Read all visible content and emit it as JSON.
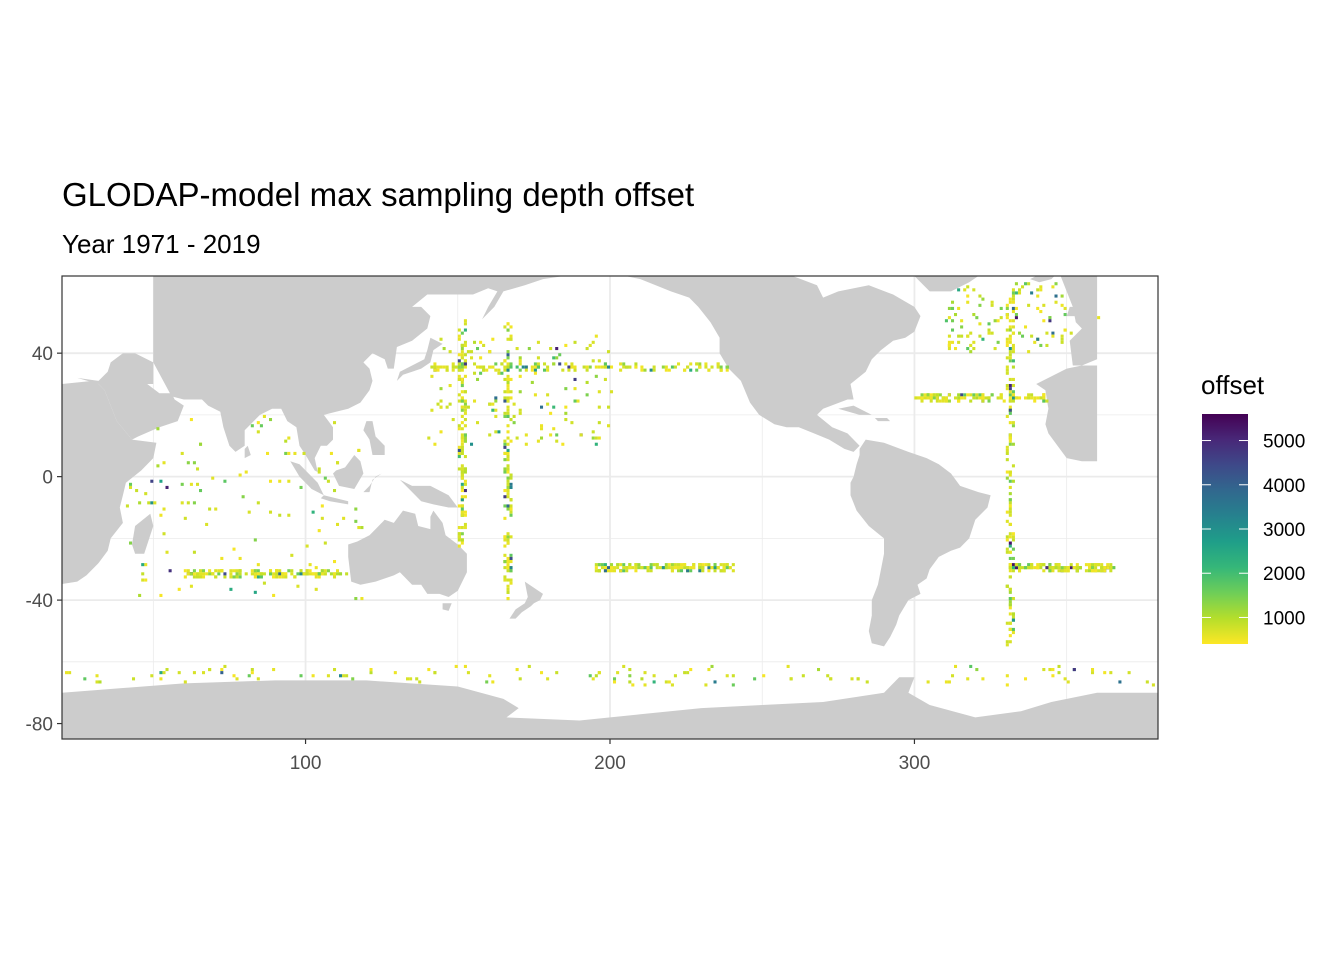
{
  "title": "GLODAP-model max sampling depth offset",
  "subtitle": "Year 1971 - 2019",
  "colors": {
    "land": "#cccccc",
    "ocean": "#ffffff",
    "grid": "#ebebeb",
    "panel_border": "#333333",
    "viridis": [
      "#fde725",
      "#b5de2b",
      "#6ece58",
      "#35b779",
      "#1f9e89",
      "#26828e",
      "#31688e",
      "#3e4989",
      "#482878",
      "#440154"
    ]
  },
  "chart_data": {
    "type": "heatmap",
    "x_axis": {
      "ticks": [
        100,
        200,
        300
      ],
      "range": [
        20,
        380
      ]
    },
    "y_axis": {
      "ticks": [
        40,
        0,
        -40,
        -80
      ],
      "range": [
        -85,
        65
      ]
    },
    "grid": true,
    "legend": {
      "title": "offset",
      "position": "right",
      "ticks": [
        5000,
        4000,
        3000,
        2000,
        1000
      ],
      "range": [
        400,
        5600
      ]
    },
    "land_polygons": {
      "north_america": [
        [
          190,
          65
        ],
        [
          200,
          66
        ],
        [
          210,
          64
        ],
        [
          215,
          62
        ],
        [
          220,
          60
        ],
        [
          226,
          58
        ],
        [
          229,
          55
        ],
        [
          233,
          50
        ],
        [
          236,
          45
        ],
        [
          236,
          40
        ],
        [
          239,
          35
        ],
        [
          243,
          31
        ],
        [
          246,
          24
        ],
        [
          249,
          20
        ],
        [
          254,
          17
        ],
        [
          258,
          16
        ],
        [
          262,
          16
        ],
        [
          267,
          14
        ],
        [
          272,
          12
        ],
        [
          277,
          9
        ],
        [
          280,
          8
        ],
        [
          282,
          10
        ],
        [
          278,
          14
        ],
        [
          273,
          16
        ],
        [
          268,
          20
        ],
        [
          270,
          22
        ],
        [
          278,
          25
        ],
        [
          280,
          25
        ],
        [
          279,
          30
        ],
        [
          284,
          34
        ],
        [
          286,
          38
        ],
        [
          289,
          41
        ],
        [
          293,
          44
        ],
        [
          297,
          45
        ],
        [
          300,
          47
        ],
        [
          302,
          52
        ],
        [
          300,
          55
        ],
        [
          293,
          59
        ],
        [
          285,
          62
        ],
        [
          275,
          60
        ],
        [
          270,
          58
        ],
        [
          268,
          62
        ],
        [
          260,
          65
        ]
      ],
      "greenland": [
        [
          300,
          65
        ],
        [
          305,
          60
        ],
        [
          312,
          60
        ],
        [
          318,
          63
        ],
        [
          321,
          65
        ]
      ],
      "south_america": [
        [
          282,
          9
        ],
        [
          284,
          12
        ],
        [
          290,
          11
        ],
        [
          298,
          8
        ],
        [
          304,
          6
        ],
        [
          308,
          4
        ],
        [
          312,
          1
        ],
        [
          315,
          -3
        ],
        [
          321,
          -5
        ],
        [
          325,
          -6
        ],
        [
          324,
          -10
        ],
        [
          320,
          -14
        ],
        [
          318,
          -20
        ],
        [
          315,
          -23
        ],
        [
          312,
          -24
        ],
        [
          308,
          -26
        ],
        [
          305,
          -30
        ],
        [
          304,
          -33
        ],
        [
          301,
          -35
        ],
        [
          302,
          -38
        ],
        [
          298,
          -40
        ],
        [
          295,
          -45
        ],
        [
          294,
          -48
        ],
        [
          292,
          -52
        ],
        [
          290,
          -55
        ],
        [
          286,
          -54
        ],
        [
          285,
          -50
        ],
        [
          286,
          -45
        ],
        [
          286,
          -40
        ],
        [
          288,
          -35
        ],
        [
          289,
          -30
        ],
        [
          290,
          -25
        ],
        [
          290,
          -20
        ],
        [
          285,
          -16
        ],
        [
          281,
          -11
        ],
        [
          279,
          -6
        ],
        [
          279,
          -2
        ],
        [
          280,
          0
        ],
        [
          281,
          4
        ],
        [
          282,
          7
        ]
      ],
      "europe": [
        [
          348,
          65
        ],
        [
          350,
          60
        ],
        [
          352,
          55
        ],
        [
          353,
          50
        ],
        [
          355,
          48
        ],
        [
          351,
          44
        ],
        [
          352,
          36
        ],
        [
          355,
          36
        ],
        [
          360,
          38
        ],
        [
          360,
          65
        ]
      ],
      "europe_wrap": [
        [
          20,
          65
        ],
        [
          20,
          30
        ],
        [
          25,
          32
        ],
        [
          32,
          31
        ],
        [
          35,
          34
        ],
        [
          36,
          37
        ],
        [
          40,
          40
        ],
        [
          44,
          40
        ],
        [
          50,
          37
        ],
        [
          50,
          30
        ],
        [
          48,
          30
        ],
        [
          52,
          27
        ],
        [
          56,
          27
        ],
        [
          57,
          25
        ],
        [
          60,
          23
        ],
        [
          58,
          18
        ],
        [
          52,
          16
        ],
        [
          45,
          13
        ],
        [
          43,
          12
        ],
        [
          38,
          18
        ],
        [
          34,
          28
        ],
        [
          32,
          30
        ],
        [
          25,
          32
        ],
        [
          20,
          30
        ],
        [
          20,
          65
        ]
      ],
      "africa": [
        [
          20,
          30
        ],
        [
          30,
          31
        ],
        [
          32,
          30
        ],
        [
          34,
          28
        ],
        [
          38,
          18
        ],
        [
          43,
          12
        ],
        [
          51,
          11
        ],
        [
          50,
          6
        ],
        [
          46,
          2
        ],
        [
          41,
          -2
        ],
        [
          40,
          -6
        ],
        [
          39,
          -10
        ],
        [
          40,
          -15
        ],
        [
          36,
          -20
        ],
        [
          35,
          -24
        ],
        [
          32,
          -28
        ],
        [
          28,
          -32
        ],
        [
          25,
          -34
        ],
        [
          20,
          -34.8
        ]
      ],
      "africa_wrap": [
        [
          340,
          30
        ],
        [
          343,
          28
        ],
        [
          344,
          22
        ],
        [
          343,
          17
        ],
        [
          344,
          14
        ],
        [
          347,
          10
        ],
        [
          350,
          6
        ],
        [
          355,
          5
        ],
        [
          360,
          5
        ],
        [
          360,
          36
        ],
        [
          355,
          36
        ],
        [
          350,
          35
        ],
        [
          344,
          32
        ]
      ],
      "madagascar": [
        [
          44,
          -25
        ],
        [
          47,
          -25
        ],
        [
          50,
          -16
        ],
        [
          49,
          -12
        ],
        [
          44,
          -16
        ],
        [
          43,
          -22
        ]
      ],
      "asia": [
        [
          50,
          65
        ],
        [
          50,
          37
        ],
        [
          56,
          26
        ],
        [
          60,
          25
        ],
        [
          66,
          25
        ],
        [
          68,
          23
        ],
        [
          72,
          21
        ],
        [
          73,
          16
        ],
        [
          75,
          10
        ],
        [
          77,
          8
        ],
        [
          80,
          10
        ],
        [
          80,
          15
        ],
        [
          85,
          20
        ],
        [
          89,
          22
        ],
        [
          92,
          22
        ],
        [
          94,
          18
        ],
        [
          97,
          16
        ],
        [
          98,
          10
        ],
        [
          100,
          7
        ],
        [
          103,
          2
        ],
        [
          104,
          1.5
        ],
        [
          103,
          6
        ],
        [
          105,
          10
        ],
        [
          107,
          10
        ],
        [
          109,
          12
        ],
        [
          109,
          16
        ],
        [
          106,
          20
        ],
        [
          110,
          21
        ],
        [
          114,
          22
        ],
        [
          118,
          24
        ],
        [
          121,
          28
        ],
        [
          122,
          31
        ],
        [
          121,
          35
        ],
        [
          119,
          37
        ],
        [
          122,
          40
        ],
        [
          126,
          38
        ],
        [
          127,
          35
        ],
        [
          129,
          35
        ],
        [
          130,
          42
        ],
        [
          135,
          44
        ],
        [
          140,
          48
        ],
        [
          141,
          52
        ],
        [
          138,
          55
        ],
        [
          135,
          55
        ],
        [
          140,
          59
        ],
        [
          148,
          59
        ],
        [
          155,
          59
        ],
        [
          160,
          61
        ],
        [
          163,
          60
        ],
        [
          160,
          55
        ],
        [
          158,
          51
        ],
        [
          162,
          55
        ],
        [
          165,
          60
        ],
        [
          172,
          62
        ],
        [
          178,
          64
        ],
        [
          185,
          65
        ]
      ],
      "japan": [
        [
          130,
          31
        ],
        [
          132,
          33
        ],
        [
          135,
          34
        ],
        [
          138,
          35
        ],
        [
          141,
          37
        ],
        [
          142,
          41
        ],
        [
          145,
          43
        ],
        [
          141,
          45
        ],
        [
          140,
          41
        ],
        [
          139,
          38
        ],
        [
          135,
          36
        ],
        [
          131,
          34
        ]
      ],
      "sri_lanka": [
        [
          80,
          6
        ],
        [
          82,
          7
        ],
        [
          81,
          10
        ],
        [
          80,
          9
        ]
      ],
      "borneo": [
        [
          109,
          1
        ],
        [
          111,
          -3
        ],
        [
          116,
          -4
        ],
        [
          119,
          1
        ],
        [
          118,
          5
        ],
        [
          116,
          7
        ],
        [
          113,
          3
        ],
        [
          110,
          2
        ]
      ],
      "sumatra": [
        [
          95,
          5
        ],
        [
          98,
          4
        ],
        [
          104,
          -2
        ],
        [
          106,
          -6
        ],
        [
          102,
          -4
        ],
        [
          98,
          0
        ]
      ],
      "java": [
        [
          106,
          -6
        ],
        [
          110,
          -7
        ],
        [
          114,
          -8
        ],
        [
          114,
          -9
        ],
        [
          108,
          -8
        ],
        [
          105,
          -7
        ]
      ],
      "sulawesi": [
        [
          119,
          -5
        ],
        [
          121,
          -3
        ],
        [
          123,
          0
        ],
        [
          125,
          1
        ],
        [
          122,
          -1
        ],
        [
          121,
          -5
        ]
      ],
      "philippines": [
        [
          120,
          18
        ],
        [
          122,
          18
        ],
        [
          123,
          13
        ],
        [
          126,
          10
        ],
        [
          126,
          7
        ],
        [
          122,
          7
        ],
        [
          121,
          12
        ],
        [
          119,
          15
        ]
      ],
      "new_guinea": [
        [
          131,
          -1
        ],
        [
          135,
          -3
        ],
        [
          141,
          -3
        ],
        [
          147,
          -6
        ],
        [
          150,
          -10
        ],
        [
          147,
          -10
        ],
        [
          142,
          -9
        ],
        [
          138,
          -8
        ],
        [
          134,
          -4
        ]
      ],
      "australia": [
        [
          114,
          -22
        ],
        [
          114,
          -26
        ],
        [
          115,
          -34
        ],
        [
          118,
          -35
        ],
        [
          123,
          -34
        ],
        [
          129,
          -32
        ],
        [
          131,
          -31
        ],
        [
          135,
          -35
        ],
        [
          138,
          -35
        ],
        [
          140,
          -38
        ],
        [
          144,
          -38
        ],
        [
          147,
          -39
        ],
        [
          150,
          -37
        ],
        [
          153,
          -31
        ],
        [
          153,
          -25
        ],
        [
          150,
          -22
        ],
        [
          146,
          -19
        ],
        [
          145,
          -15
        ],
        [
          142,
          -11
        ],
        [
          141,
          -13
        ],
        [
          141,
          -17
        ],
        [
          137,
          -16
        ],
        [
          136,
          -12
        ],
        [
          132,
          -11
        ],
        [
          129,
          -15
        ],
        [
          126,
          -14
        ],
        [
          123,
          -17
        ],
        [
          121,
          -19
        ],
        [
          117,
          -21
        ]
      ],
      "tasmania": [
        [
          145,
          -41
        ],
        [
          148,
          -41
        ],
        [
          147,
          -43.5
        ],
        [
          145,
          -43
        ]
      ],
      "new_zealand": [
        [
          172,
          -34
        ],
        [
          175,
          -36
        ],
        [
          178,
          -38
        ],
        [
          177,
          -40
        ],
        [
          175,
          -41
        ],
        [
          174,
          -42
        ],
        [
          171,
          -44
        ],
        [
          169,
          -46
        ],
        [
          167,
          -46
        ],
        [
          169,
          -43
        ],
        [
          172,
          -41
        ],
        [
          173,
          -39
        ]
      ],
      "cuba": [
        [
          275,
          22
        ],
        [
          280,
          23
        ],
        [
          286,
          20
        ],
        [
          282,
          20
        ]
      ],
      "hispaniola": [
        [
          287,
          19
        ],
        [
          291,
          19
        ],
        [
          292,
          18
        ],
        [
          288,
          18
        ]
      ],
      "iceland": [
        [
          338,
          64
        ],
        [
          342,
          66
        ],
        [
          346,
          65
        ],
        [
          345,
          64
        ],
        [
          341,
          63
        ]
      ],
      "uk": [
        [
          354,
          50
        ],
        [
          358,
          51
        ],
        [
          359,
          54
        ],
        [
          357,
          58
        ],
        [
          354,
          58
        ],
        [
          355,
          55
        ],
        [
          353,
          53
        ]
      ],
      "ireland": [
        [
          350,
          52
        ],
        [
          354,
          52
        ],
        [
          354,
          55
        ],
        [
          351,
          55
        ]
      ],
      "antarctica": [
        [
          20,
          -70
        ],
        [
          60,
          -67
        ],
        [
          90,
          -66
        ],
        [
          120,
          -66
        ],
        [
          150,
          -68
        ],
        [
          165,
          -72
        ],
        [
          170,
          -75
        ],
        [
          166,
          -78
        ],
        [
          190,
          -79
        ],
        [
          210,
          -77
        ],
        [
          230,
          -75
        ],
        [
          250,
          -74
        ],
        [
          270,
          -73
        ],
        [
          290,
          -70
        ],
        [
          295,
          -65
        ],
        [
          300,
          -65
        ],
        [
          298,
          -70
        ],
        [
          305,
          -74
        ],
        [
          320,
          -78
        ],
        [
          335,
          -76
        ],
        [
          345,
          -73
        ],
        [
          360,
          -70
        ],
        [
          380,
          -70
        ],
        [
          380,
          -85
        ],
        [
          20,
          -85
        ]
      ]
    }
  }
}
